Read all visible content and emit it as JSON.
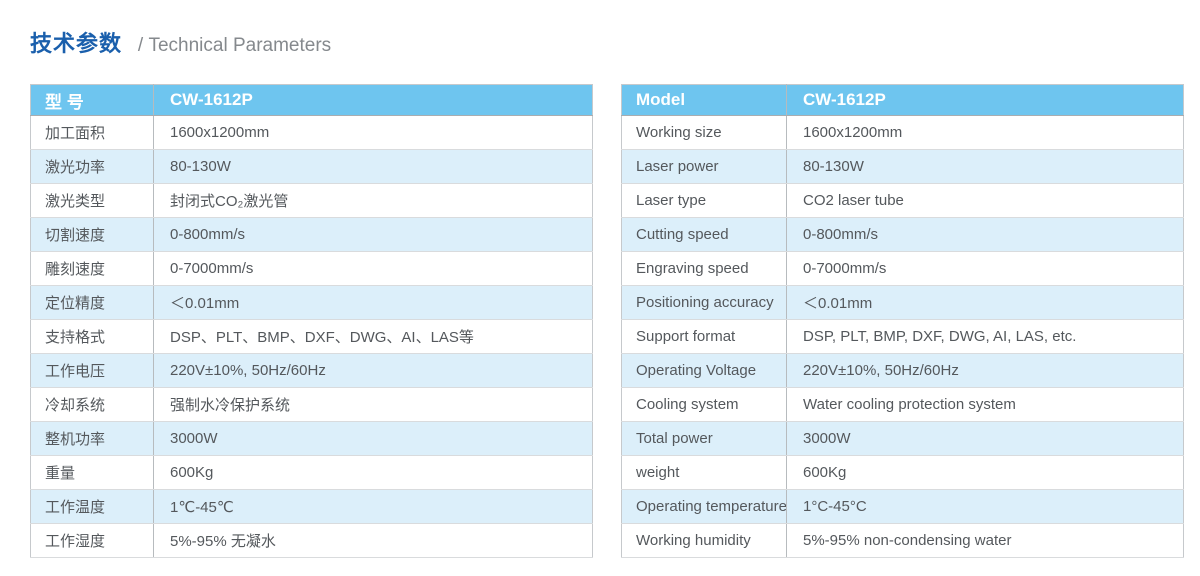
{
  "page_title": {
    "zh": "技术参数",
    "subtitle": "/ Technical Parameters"
  },
  "colors": {
    "title_blue": "#1a5fac",
    "subtitle_gray": "#85898d",
    "header_blue": "#6ec5ef",
    "zebra_blue": "#dceffa",
    "body_text": "#54585c",
    "border_gray": "#c6c9cc"
  },
  "tables": [
    {
      "id": "chinese-spec-table",
      "header": {
        "param": "型 号",
        "value": "CW-1612P"
      },
      "rows": [
        {
          "param": "加工面积",
          "value": "1600x1200mm"
        },
        {
          "param": "激光功率",
          "value": "80-130W"
        },
        {
          "param": "激光类型",
          "value": "封闭式CO₂激光管"
        },
        {
          "param": "切割速度",
          "value": "0-800mm/s"
        },
        {
          "param": "雕刻速度",
          "value": "0-7000mm/s"
        },
        {
          "param": "定位精度",
          "value": "＜0.01mm"
        },
        {
          "param": "支持格式",
          "value": "DSP、PLT、BMP、DXF、DWG、AI、LAS等"
        },
        {
          "param": "工作电压",
          "value": "220V±10%, 50Hz/60Hz"
        },
        {
          "param": "冷却系统",
          "value": "强制水冷保护系统"
        },
        {
          "param": "整机功率",
          "value": "3000W"
        },
        {
          "param": "重量",
          "value": "600Kg"
        },
        {
          "param": "工作温度",
          "value": "1℃-45℃"
        },
        {
          "param": "工作湿度",
          "value": "5%-95% 无凝水"
        }
      ]
    },
    {
      "id": "english-spec-table",
      "header": {
        "param": "Model",
        "value": "CW-1612P"
      },
      "rows": [
        {
          "param": "Working size",
          "value": "1600x1200mm"
        },
        {
          "param": "Laser power",
          "value": "80-130W"
        },
        {
          "param": "Laser type",
          "value": "CO2 laser tube"
        },
        {
          "param": "Cutting speed",
          "value": "0-800mm/s"
        },
        {
          "param": "Engraving speed",
          "value": "0-7000mm/s"
        },
        {
          "param": "Positioning accuracy",
          "value": "＜0.01mm"
        },
        {
          "param": "Support format",
          "value": "DSP, PLT, BMP, DXF, DWG, AI, LAS, etc."
        },
        {
          "param": "Operating Voltage",
          "value": "220V±10%, 50Hz/60Hz"
        },
        {
          "param": "Cooling system",
          "value": "Water cooling protection system"
        },
        {
          "param": "Total power",
          "value": "3000W"
        },
        {
          "param": "weight",
          "value": "600Kg"
        },
        {
          "param": "Operating temperature",
          "value": "1°C-45°C"
        },
        {
          "param": "Working humidity",
          "value": "5%-95% non-condensing water"
        }
      ]
    }
  ]
}
